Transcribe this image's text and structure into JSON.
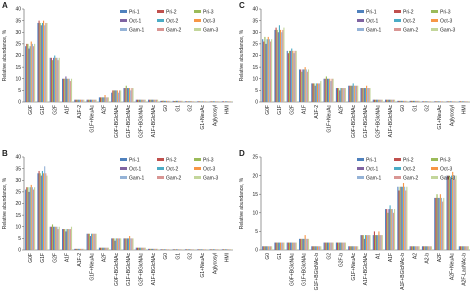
{
  "chart_data": [
    {
      "type": "bar",
      "title": "A",
      "ylabel": "Relative abundance, %",
      "categories": [
        "G0F",
        "G1F",
        "G2F",
        "A1F",
        "A1F-2",
        "G1F+NeuAc",
        "A2F",
        "G0F+BGlcNAc",
        "G1F+BGlcNAc",
        "G2F+BGlcNAc",
        "A1F+BGlcNAc",
        "G0",
        "G1",
        "G2",
        "G1+NeuAc",
        "Aglycosyl",
        "HMI"
      ],
      "ylim": [
        0,
        40
      ],
      "yticks": [
        0,
        5,
        10,
        15,
        20,
        25,
        30,
        35,
        40
      ],
      "legend": "upper right",
      "series": [
        {
          "name": "Pri-1",
          "color": "#4f81bd",
          "values": [
            24,
            34,
            19,
            10,
            1,
            1,
            2,
            4,
            6,
            1,
            1,
            0.5,
            0.5,
            0.3,
            0.3,
            0.2,
            0.3
          ]
        },
        {
          "name": "Pri-2",
          "color": "#c0504d",
          "values": [
            25,
            35,
            19,
            10,
            1,
            1,
            2,
            5,
            6,
            1,
            1,
            0.5,
            0.4,
            0.3,
            0.3,
            0.3,
            0.3
          ]
        },
        {
          "name": "Pri-3",
          "color": "#9bbb59",
          "values": [
            25,
            34,
            18,
            10,
            1,
            1,
            2,
            5,
            7,
            1,
            1,
            0.6,
            0.5,
            0.3,
            0.3,
            0.3,
            0.2
          ]
        },
        {
          "name": "Oct-1",
          "color": "#8064a2",
          "values": [
            23,
            33,
            19,
            11,
            1,
            1,
            2,
            5,
            6,
            1,
            1,
            0.5,
            0.5,
            0.3,
            0.2,
            0.3,
            0.3
          ]
        },
        {
          "name": "Oct-2",
          "color": "#4bacc6",
          "values": [
            24,
            34,
            20,
            10,
            1,
            1,
            2,
            5,
            6,
            1,
            1,
            0.5,
            0.5,
            0.3,
            0.3,
            0.3,
            0.3
          ]
        },
        {
          "name": "Oct-3",
          "color": "#f79646",
          "values": [
            26,
            35,
            19,
            10,
            1,
            1,
            3,
            5,
            6,
            1,
            1,
            0.5,
            0.5,
            0.4,
            0.3,
            0.3,
            0.3
          ]
        },
        {
          "name": "Gam-1",
          "color": "#95b3d7",
          "values": [
            25,
            33,
            19,
            10,
            1,
            1,
            2,
            4,
            5,
            1,
            1,
            0.5,
            0.5,
            0.3,
            0.3,
            0.3,
            0.3
          ]
        },
        {
          "name": "Gam-2",
          "color": "#d99694",
          "values": [
            24,
            34,
            18,
            9,
            1,
            1,
            2,
            5,
            6,
            1,
            1,
            0.5,
            0.5,
            0.3,
            0.3,
            0.3,
            0.3
          ]
        },
        {
          "name": "Gam-3",
          "color": "#c3d69b",
          "values": [
            25,
            34,
            19,
            10,
            1,
            1,
            2,
            5,
            6,
            1,
            1,
            0.5,
            0.5,
            0.3,
            0.3,
            0.3,
            0.3
          ]
        }
      ]
    },
    {
      "type": "bar",
      "title": "B",
      "ylabel": "Relative abundance, %",
      "categories": [
        "G0F",
        "G1F",
        "G2F",
        "A1F",
        "A1F-2",
        "G1F+NeuAc",
        "A2F",
        "G0F+BGlcNAc",
        "G1F+BGlcNAc",
        "G2F+BGlcNAc",
        "A1F+BGlcNAc",
        "G0",
        "G1",
        "G2",
        "G1+NeuAc",
        "Aglycosyl",
        "HMI"
      ],
      "ylim": [
        0,
        40
      ],
      "yticks": [
        0,
        5,
        10,
        15,
        20,
        25,
        30,
        35,
        40
      ],
      "legend": "upper right",
      "series": [
        {
          "name": "Pri-1",
          "color": "#4f81bd",
          "values": [
            26,
            33,
            10,
            9,
            0.5,
            7,
            1,
            5,
            5,
            1,
            0.5,
            0.3,
            0.3,
            0.3,
            0.3,
            0.3,
            0.3
          ]
        },
        {
          "name": "Pri-2",
          "color": "#c0504d",
          "values": [
            27,
            34,
            10,
            9,
            0.5,
            7,
            1,
            5,
            5,
            1,
            0.5,
            0.3,
            0.3,
            0.3,
            0.3,
            0.3,
            0.3
          ]
        },
        {
          "name": "Pri-3",
          "color": "#9bbb59",
          "values": [
            27,
            33,
            11,
            9,
            0.5,
            7,
            1,
            5,
            5,
            1,
            0.5,
            0.3,
            0.3,
            0.3,
            0.3,
            0.3,
            0.3
          ]
        },
        {
          "name": "Oct-1",
          "color": "#8064a2",
          "values": [
            25,
            32,
            10,
            8,
            0.5,
            6,
            1,
            4,
            5,
            1,
            0.5,
            0.3,
            0.3,
            0.3,
            0.3,
            0.3,
            0.3
          ]
        },
        {
          "name": "Oct-2",
          "color": "#4bacc6",
          "values": [
            27,
            34,
            10,
            9,
            0.5,
            7,
            1,
            5,
            5,
            1,
            0.5,
            0.3,
            0.3,
            0.3,
            0.3,
            0.3,
            0.3
          ]
        },
        {
          "name": "Oct-3",
          "color": "#f79646",
          "values": [
            28,
            33,
            10,
            9,
            0.5,
            7,
            1,
            5,
            6,
            1,
            0.5,
            0.3,
            0.3,
            0.3,
            0.3,
            0.3,
            0.3
          ]
        },
        {
          "name": "Gam-1",
          "color": "#95b3d7",
          "values": [
            27,
            36,
            10,
            9,
            0.5,
            7,
            1,
            5,
            5,
            1,
            0.5,
            0.3,
            0.3,
            0.3,
            0.3,
            0.3,
            0.3
          ]
        },
        {
          "name": "Gam-2",
          "color": "#d99694",
          "values": [
            26,
            33,
            9,
            9,
            0.5,
            7,
            1,
            5,
            5,
            1,
            0.5,
            0.3,
            0.3,
            0.3,
            0.3,
            0.3,
            0.3
          ]
        },
        {
          "name": "Gam-3",
          "color": "#c3d69b",
          "values": [
            27,
            32,
            10,
            10,
            0.5,
            7,
            1,
            5,
            5,
            1,
            0.5,
            0.3,
            0.3,
            0.3,
            0.3,
            0.3,
            0.3
          ]
        }
      ]
    },
    {
      "type": "bar",
      "title": "C",
      "ylabel": "Relative abundance, %",
      "categories": [
        "G0F",
        "G1F",
        "G2F",
        "A1F",
        "A1F-2",
        "G1F+NeuAc",
        "A2F",
        "G0F+BGlcNAc",
        "G1F+BGlcNAc",
        "G2F+BGlcNAc",
        "A1F+BGlcNAc",
        "G0",
        "G1",
        "G2",
        "G1+NeuAc",
        "Aglycosyl",
        "HMI"
      ],
      "ylim": [
        0,
        40
      ],
      "yticks": [
        0,
        5,
        10,
        15,
        20,
        25,
        30,
        35,
        40
      ],
      "legend": "upper right",
      "series": [
        {
          "name": "Pri-1",
          "color": "#4f81bd",
          "values": [
            27,
            31,
            22,
            14,
            8,
            10,
            6,
            7,
            6,
            1,
            1,
            0.5,
            0.5,
            0.3,
            0.3,
            0.3,
            0.3
          ]
        },
        {
          "name": "Pri-2",
          "color": "#c0504d",
          "values": [
            26,
            32,
            21,
            14,
            8,
            10,
            6,
            7,
            6,
            1,
            1,
            0.5,
            0.5,
            0.3,
            0.3,
            0.3,
            0.3
          ]
        },
        {
          "name": "Pri-3",
          "color": "#9bbb59",
          "values": [
            28,
            31,
            22,
            13,
            8,
            11,
            6,
            7,
            6,
            1,
            1,
            0.5,
            0.5,
            0.3,
            0.3,
            0.3,
            0.3
          ]
        },
        {
          "name": "Oct-1",
          "color": "#8064a2",
          "values": [
            25,
            30,
            22,
            14,
            7,
            10,
            5,
            7,
            6,
            1,
            1,
            0.5,
            0.5,
            0.3,
            0.3,
            0.3,
            0.3
          ]
        },
        {
          "name": "Oct-2",
          "color": "#4bacc6",
          "values": [
            27,
            33,
            23,
            14,
            8,
            10,
            6,
            8,
            6,
            1,
            1,
            0.5,
            0.5,
            0.3,
            0.3,
            0.3,
            0.3
          ]
        },
        {
          "name": "Oct-3",
          "color": "#f79646",
          "values": [
            28,
            31,
            22,
            15,
            8,
            10,
            6,
            7,
            7,
            1,
            1,
            0.5,
            0.5,
            0.3,
            0.3,
            0.3,
            0.3
          ]
        },
        {
          "name": "Gam-1",
          "color": "#95b3d7",
          "values": [
            27,
            30,
            21,
            14,
            8,
            9,
            6,
            7,
            6,
            1,
            1,
            0.5,
            0.5,
            0.3,
            0.3,
            0.3,
            0.3
          ]
        },
        {
          "name": "Gam-2",
          "color": "#d99694",
          "values": [
            26,
            31,
            22,
            13,
            8,
            10,
            6,
            7,
            6,
            1,
            1,
            0.5,
            0.5,
            0.3,
            0.3,
            0.3,
            0.3
          ]
        },
        {
          "name": "Gam-3",
          "color": "#c3d69b",
          "values": [
            27,
            32,
            22,
            14,
            9,
            10,
            6,
            7,
            6,
            1,
            1,
            0.5,
            0.5,
            0.3,
            0.3,
            0.3,
            0.3
          ]
        }
      ]
    },
    {
      "type": "bar",
      "title": "D",
      "ylabel": "Relative abundance, %",
      "categories": [
        "G0",
        "G1",
        "G0F+BGlcNAc",
        "G1F+BGlcNAc",
        "G1F+BGlcNAc-b",
        "G2",
        "G2F-b",
        "G1F+NeuAc",
        "A1F+BGlcNAc",
        "A1",
        "A1F",
        "A1F+BGlcNAc-b",
        "A2",
        "A2-b",
        "A2F",
        "A2F+NeuAc",
        "A2F-LacNAc-b"
      ],
      "ylim": [
        0,
        25
      ],
      "yticks": [
        0,
        5,
        10,
        15,
        20,
        25
      ],
      "legend": "upper right",
      "series": [
        {
          "name": "Pri-1",
          "color": "#4f81bd",
          "values": [
            1,
            2,
            2,
            3,
            1,
            2,
            2,
            1,
            4,
            4,
            11,
            17,
            1,
            1,
            14,
            20,
            1
          ]
        },
        {
          "name": "Pri-2",
          "color": "#c0504d",
          "values": [
            1,
            2,
            2,
            3,
            1,
            2,
            2,
            1,
            4,
            5,
            11,
            16,
            1,
            1,
            14,
            20,
            1
          ]
        },
        {
          "name": "Pri-3",
          "color": "#9bbb59",
          "values": [
            1,
            2,
            2,
            3,
            1,
            2,
            2,
            1,
            4,
            4,
            10,
            17,
            1,
            1,
            15,
            20,
            1
          ]
        },
        {
          "name": "Oct-1",
          "color": "#8064a2",
          "values": [
            1,
            2,
            2,
            3,
            1,
            2,
            2,
            1,
            3,
            4,
            11,
            17,
            1,
            1,
            14,
            19,
            1
          ]
        },
        {
          "name": "Oct-2",
          "color": "#4bacc6",
          "values": [
            1,
            2,
            2,
            3,
            1,
            2,
            2,
            1,
            4,
            4,
            12,
            17,
            1,
            1,
            14,
            20,
            1
          ]
        },
        {
          "name": "Oct-3",
          "color": "#f79646",
          "values": [
            1,
            2,
            2,
            4,
            1,
            2,
            2,
            1,
            4,
            5,
            11,
            18,
            1,
            1,
            15,
            21,
            1
          ]
        },
        {
          "name": "Gam-1",
          "color": "#95b3d7",
          "values": [
            1,
            2,
            2,
            3,
            1,
            2,
            2,
            1,
            4,
            4,
            11,
            17,
            1,
            1,
            14,
            20,
            1
          ]
        },
        {
          "name": "Gam-2",
          "color": "#d99694",
          "values": [
            1,
            2,
            2,
            3,
            1,
            2,
            2,
            1,
            4,
            4,
            10,
            16,
            1,
            1,
            13,
            19,
            1
          ]
        },
        {
          "name": "Gam-3",
          "color": "#c3d69b",
          "values": [
            1,
            2,
            2,
            3,
            1,
            2,
            2,
            1,
            4,
            4,
            11,
            17,
            1,
            1,
            14,
            20,
            1
          ]
        }
      ]
    }
  ]
}
